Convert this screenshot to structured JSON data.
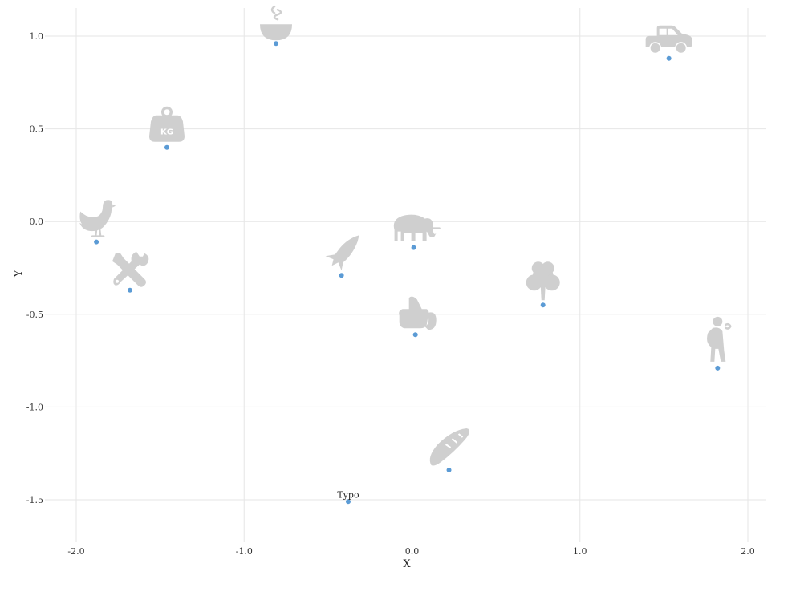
{
  "chart_data": {
    "type": "scatter",
    "title": "",
    "xlabel": "X",
    "ylabel": "Y",
    "xlim": [
      -2.1,
      2.1
    ],
    "ylim": [
      -1.73,
      1.16
    ],
    "x_ticks": [
      -2.0,
      -1.0,
      0.0,
      1.0,
      2.0
    ],
    "y_ticks": [
      -1.5,
      -1.0,
      -0.5,
      0.0,
      0.5,
      1.0
    ],
    "x_tick_labels": [
      "-2.0",
      "-1.0",
      "0.0",
      "1.0",
      "2.0"
    ],
    "y_tick_labels": [
      "-1.5",
      "-1.0",
      "-0.5",
      "0.0",
      "0.5",
      "1.0"
    ],
    "grid": true,
    "point_color": "#5b9bd5",
    "icon_color": "#cfcfcf",
    "points": [
      {
        "x": -0.81,
        "y": 0.96,
        "icon": "bowl-steam-icon",
        "label": ""
      },
      {
        "x": 1.53,
        "y": 0.88,
        "icon": "car-icon",
        "label": ""
      },
      {
        "x": -1.46,
        "y": 0.4,
        "icon": "kettlebell-kg-icon",
        "label": "",
        "icon_text": "KG"
      },
      {
        "x": -1.88,
        "y": -0.11,
        "icon": "chicken-icon",
        "label": ""
      },
      {
        "x": 0.01,
        "y": -0.14,
        "icon": "elephant-icon",
        "label": ""
      },
      {
        "x": -0.42,
        "y": -0.29,
        "icon": "rocket-icon",
        "label": ""
      },
      {
        "x": -1.68,
        "y": -0.37,
        "icon": "tools-icon",
        "label": ""
      },
      {
        "x": 0.78,
        "y": -0.45,
        "icon": "tree-icon",
        "label": ""
      },
      {
        "x": 0.02,
        "y": -0.61,
        "icon": "thumbs-up-icon",
        "label": ""
      },
      {
        "x": 1.82,
        "y": -0.79,
        "icon": "person-icon",
        "label": ""
      },
      {
        "x": 0.22,
        "y": -1.34,
        "icon": "bread-icon",
        "label": ""
      },
      {
        "x": -0.38,
        "y": -1.51,
        "icon": "",
        "label": "Typo"
      }
    ]
  }
}
